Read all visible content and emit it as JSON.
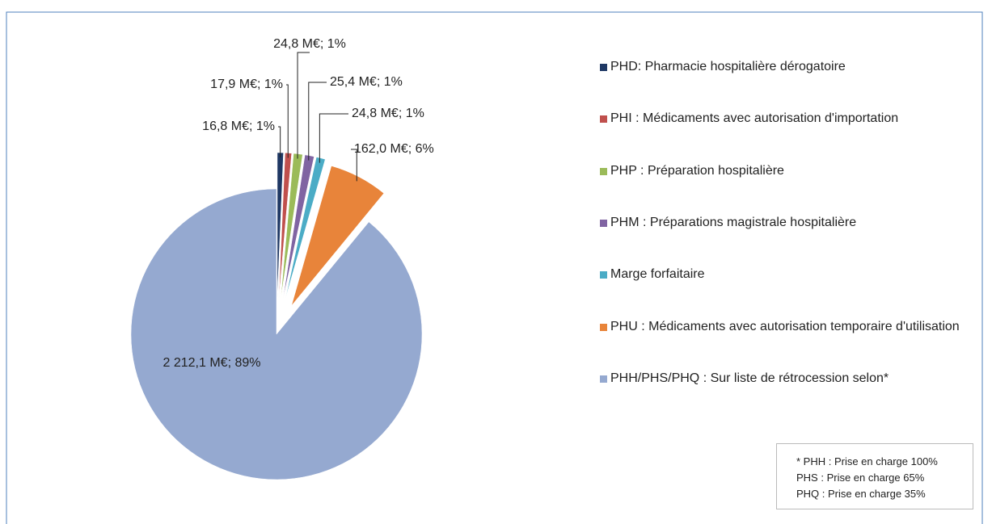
{
  "chart_data": {
    "type": "pie",
    "categories": [
      "PHD: Pharmacie hospitalière dérogatoire",
      "PHI : Médicaments avec autorisation d'importation",
      "PHP : Préparation hospitalière",
      "PHM : Préparations magistrale hospitalière",
      "Marge forfaitaire",
      "PHU : Médicaments avec autorisation temporaire d'utilisation",
      "PHH/PHS/PHQ : Sur liste de rétrocession selon*"
    ],
    "values": [
      16.8,
      17.9,
      24.8,
      25.4,
      24.8,
      162.0,
      2212.1
    ],
    "value_labels": [
      "16,8 M€; 1%",
      "17,9 M€; 1%",
      "24,8 M€; 1%",
      "25,4 M€; 1%",
      "24,8 M€; 1%",
      "162,0 M€; 6%",
      "2 212,1 M€; 89%"
    ],
    "colors": [
      "#1f3864",
      "#c0504d",
      "#9bbb59",
      "#8064a2",
      "#4bacc6",
      "#e8843a",
      "#95a9d0"
    ],
    "note": [
      "* PHH : Prise en charge 100%",
      "PHS : Prise en charge 65%",
      "PHQ : Prise en charge 35%"
    ]
  }
}
